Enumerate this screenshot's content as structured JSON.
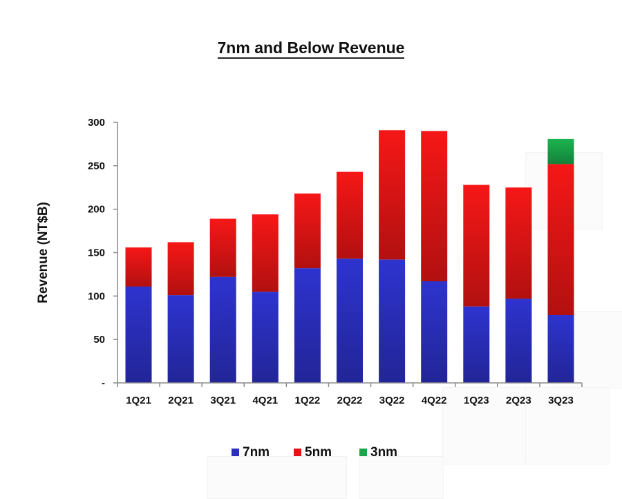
{
  "colors": {
    "7nm": "#2b2fc0",
    "5nm": "#e41515",
    "3nm": "#1aa64a"
  },
  "chart_data": {
    "type": "bar",
    "stacked": true,
    "title": "7nm and Below Revenue",
    "xlabel": "",
    "ylabel": "Revenue (NT$B)",
    "ylim": [
      0,
      300
    ],
    "yticks": [
      0,
      50,
      100,
      150,
      200,
      250,
      300
    ],
    "ytick_labels": [
      "-",
      "50",
      "100",
      "150",
      "200",
      "250",
      "300"
    ],
    "categories": [
      "1Q21",
      "2Q21",
      "3Q21",
      "4Q21",
      "1Q22",
      "2Q22",
      "3Q22",
      "4Q22",
      "1Q23",
      "2Q23",
      "3Q23"
    ],
    "series": [
      {
        "name": "7nm",
        "values": [
          111,
          101,
          122,
          105,
          132,
          143,
          142,
          117,
          88,
          97,
          78
        ]
      },
      {
        "name": "5nm",
        "values": [
          45,
          61,
          67,
          89,
          86,
          100,
          149,
          173,
          140,
          128,
          174
        ]
      },
      {
        "name": "3nm",
        "values": [
          0,
          0,
          0,
          0,
          0,
          0,
          0,
          0,
          0,
          0,
          29
        ]
      }
    ],
    "legend_position": "bottom-center",
    "grid": false
  }
}
